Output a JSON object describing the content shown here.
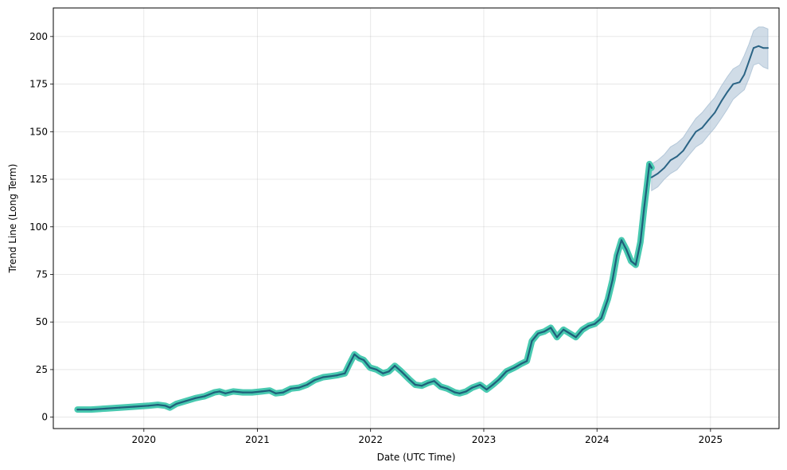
{
  "chart_data": {
    "type": "line",
    "title": "",
    "xlabel": "Date (UTC Time)",
    "ylabel": "Trend Line (Long Term)",
    "xlim": [
      "2019-03-15",
      "2025-08-10"
    ],
    "ylim": [
      -6,
      215
    ],
    "x_ticks": [
      "2020-01-01",
      "2021-01-01",
      "2022-01-01",
      "2023-01-01",
      "2024-01-01",
      "2025-01-01"
    ],
    "x_tick_labels": [
      "2020",
      "2021",
      "2022",
      "2023",
      "2024",
      "2025"
    ],
    "y_ticks": [
      0,
      25,
      50,
      75,
      100,
      125,
      150,
      175,
      200
    ],
    "y_tick_labels": [
      "0",
      "25",
      "50",
      "75",
      "100",
      "125",
      "150",
      "175",
      "200"
    ],
    "grid": true,
    "legend": "none",
    "colors": {
      "history_line": "#1f5f7a",
      "history_halo": "#48c9b0",
      "forecast_line": "#2b6485",
      "forecast_band": "#a9bfd3"
    },
    "series": [
      {
        "kind": "history",
        "x": [
          "2019-06-01",
          "2019-07-15",
          "2019-09-01",
          "2019-10-15",
          "2019-12-01",
          "2020-01-15",
          "2020-02-15",
          "2020-03-10",
          "2020-03-25",
          "2020-04-15",
          "2020-05-15",
          "2020-06-15",
          "2020-07-15",
          "2020-08-15",
          "2020-09-01",
          "2020-09-20",
          "2020-10-15",
          "2020-11-15",
          "2020-12-15",
          "2021-01-15",
          "2021-02-10",
          "2021-03-01",
          "2021-03-25",
          "2021-04-20",
          "2021-05-15",
          "2021-06-10",
          "2021-07-05",
          "2021-08-01",
          "2021-08-25",
          "2021-09-15",
          "2021-10-10",
          "2021-10-25",
          "2021-11-10",
          "2021-11-25",
          "2021-12-10",
          "2021-12-30",
          "2022-01-20",
          "2022-02-10",
          "2022-03-01",
          "2022-03-20",
          "2022-04-10",
          "2022-05-05",
          "2022-05-25",
          "2022-06-15",
          "2022-07-05",
          "2022-07-25",
          "2022-08-15",
          "2022-09-05",
          "2022-09-30",
          "2022-10-15",
          "2022-11-05",
          "2022-11-25",
          "2022-12-20",
          "2023-01-10",
          "2023-01-30",
          "2023-02-20",
          "2023-03-15",
          "2023-04-10",
          "2023-05-01",
          "2023-05-20",
          "2023-06-05",
          "2023-06-25",
          "2023-07-15",
          "2023-08-05",
          "2023-08-25",
          "2023-09-15",
          "2023-10-05",
          "2023-10-25",
          "2023-11-15",
          "2023-12-05",
          "2023-12-25",
          "2024-01-15",
          "2024-02-05",
          "2024-02-20",
          "2024-03-05",
          "2024-03-20",
          "2024-04-05",
          "2024-04-20",
          "2024-05-05",
          "2024-05-20",
          "2024-06-01",
          "2024-06-10",
          "2024-06-18",
          "2024-06-25"
        ],
        "values": [
          4,
          4,
          4.5,
          5,
          5.5,
          6,
          6.5,
          6,
          5,
          7,
          8.5,
          10,
          11,
          13,
          13.5,
          12.5,
          13.5,
          13,
          13,
          13.5,
          14,
          12.5,
          13,
          15,
          15.5,
          17,
          19.5,
          21,
          21.5,
          22,
          23,
          28,
          33,
          31,
          30,
          26,
          25,
          23,
          24,
          27,
          24,
          20,
          17,
          16.5,
          18,
          19,
          16,
          15,
          13,
          12.5,
          13.5,
          15.5,
          17,
          14.5,
          17,
          20,
          24,
          26,
          28,
          29.5,
          40,
          44,
          45,
          47,
          42,
          46,
          44,
          42,
          46,
          48,
          49,
          52,
          62,
          72,
          85,
          93,
          88,
          82,
          80,
          92,
          110,
          122,
          133,
          131
        ]
      },
      {
        "kind": "forecast",
        "x": [
          "2024-06-25",
          "2024-07-15",
          "2024-08-05",
          "2024-08-25",
          "2024-09-15",
          "2024-10-05",
          "2024-10-25",
          "2024-11-15",
          "2024-12-05",
          "2024-12-25",
          "2025-01-15",
          "2025-02-05",
          "2025-02-25",
          "2025-03-15",
          "2025-04-05",
          "2025-04-20",
          "2025-05-05",
          "2025-05-20",
          "2025-06-05",
          "2025-06-20",
          "2025-07-05"
        ],
        "values": [
          126,
          128,
          131,
          135,
          137,
          140,
          145,
          150,
          152,
          156,
          160,
          166,
          171,
          175,
          176,
          180,
          187,
          194,
          195,
          194,
          194
        ],
        "lower": [
          119,
          121,
          125,
          128,
          130,
          134,
          138,
          142,
          144,
          148,
          152,
          157,
          162,
          167,
          170,
          172,
          178,
          185,
          186,
          184,
          183
        ],
        "upper": [
          133,
          135,
          138,
          142,
          144,
          147,
          152,
          157,
          160,
          164,
          168,
          174,
          179,
          183,
          185,
          190,
          196,
          203,
          205,
          205,
          204
        ]
      }
    ]
  }
}
